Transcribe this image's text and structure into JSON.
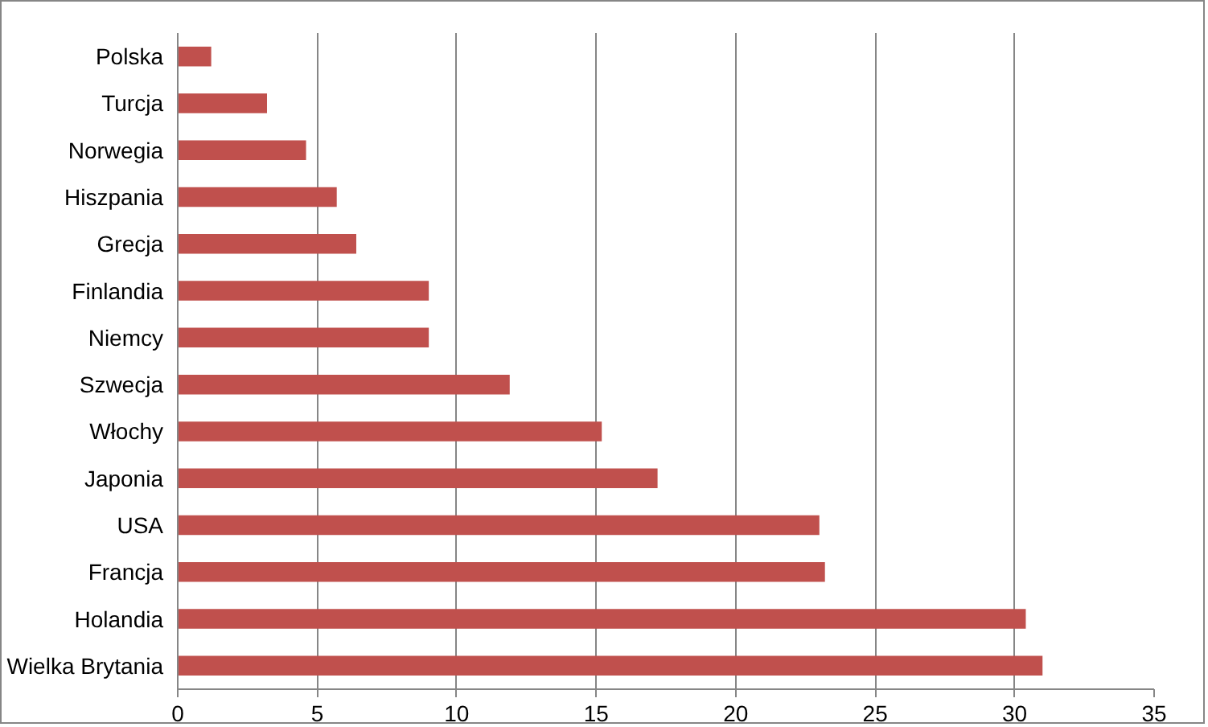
{
  "chart_data": {
    "type": "bar",
    "orientation": "horizontal",
    "categories": [
      "Polska",
      "Turcja",
      "Norwegia",
      "Hiszpania",
      "Grecja",
      "Finlandia",
      "Niemcy",
      "Szwecja",
      "Włochy",
      "Japonia",
      "USA",
      "Francja",
      "Holandia",
      "Wielka Brytania"
    ],
    "values": [
      1.2,
      3.2,
      4.6,
      5.7,
      6.4,
      9.0,
      9.0,
      11.9,
      15.2,
      17.2,
      23.0,
      23.2,
      30.4,
      31.0
    ],
    "color": "#c0504d",
    "xlim": [
      0,
      35
    ],
    "xticks": [
      0,
      5,
      10,
      15,
      20,
      25,
      30,
      35
    ],
    "grid": "x"
  }
}
